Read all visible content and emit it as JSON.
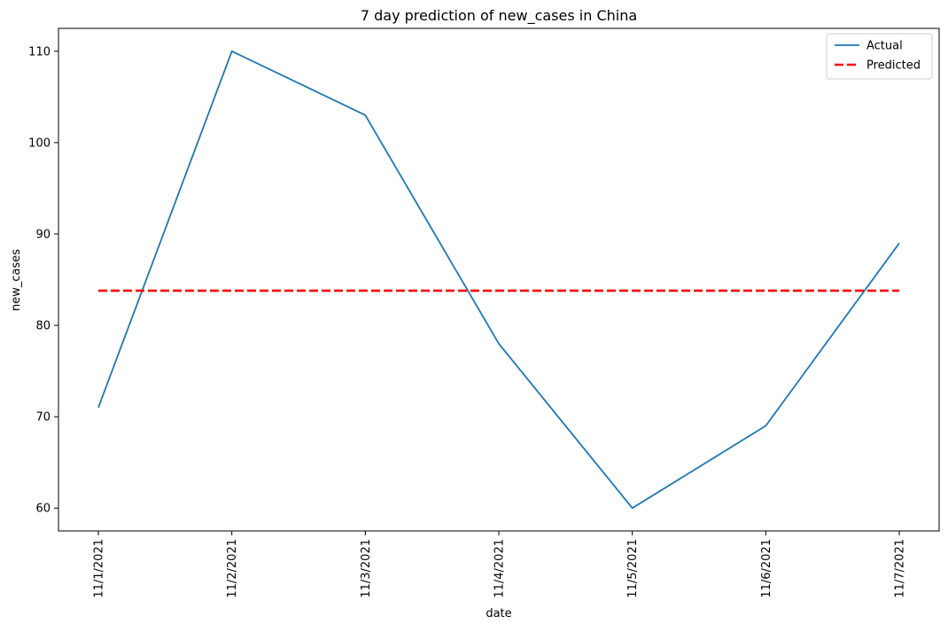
{
  "chart_data": {
    "type": "line",
    "title": "7 day prediction of new_cases in China",
    "xlabel": "date",
    "ylabel": "new_cases",
    "categories": [
      "11/1/2021",
      "11/2/2021",
      "11/3/2021",
      "11/4/2021",
      "11/5/2021",
      "11/6/2021",
      "11/7/2021"
    ],
    "yticks": [
      60,
      70,
      80,
      90,
      100,
      110
    ],
    "ylim": [
      57.5,
      112.5
    ],
    "grid": false,
    "legend_position": "top-right",
    "series": [
      {
        "name": "Actual",
        "values": [
          71,
          110,
          103,
          78,
          60,
          69,
          89
        ],
        "color": "#1f77b4",
        "style": "solid"
      },
      {
        "name": "Predicted",
        "values": [
          83.8,
          83.8,
          83.8,
          83.8,
          83.8,
          83.8,
          83.8
        ],
        "color": "#ff0000",
        "style": "dashed"
      }
    ]
  }
}
